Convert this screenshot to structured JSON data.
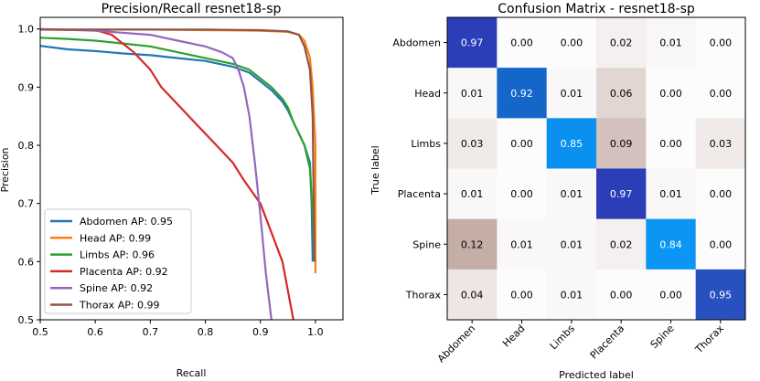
{
  "chart_data": [
    {
      "type": "line",
      "title": "Precision/Recall resnet18-sp",
      "xlabel": "Recall",
      "ylabel": "Precision",
      "xlim": [
        0.5,
        1.05
      ],
      "ylim": [
        0.5,
        1.02
      ],
      "xticks": [
        "0.5",
        "0.6",
        "0.7",
        "0.8",
        "0.9",
        "1.0"
      ],
      "yticks": [
        "0.5",
        "0.6",
        "0.7",
        "0.8",
        "0.9",
        "1.0"
      ],
      "grid": false,
      "legend_position": "lower-left",
      "series": [
        {
          "name": "Abdomen AP: 0.95",
          "color": "#1f77b4",
          "x": [
            0.5,
            0.55,
            0.6,
            0.65,
            0.7,
            0.75,
            0.8,
            0.85,
            0.88,
            0.9,
            0.92,
            0.94,
            0.95,
            0.96,
            0.97,
            0.98,
            0.99,
            0.993,
            0.995
          ],
          "y": [
            0.971,
            0.965,
            0.962,
            0.958,
            0.955,
            0.95,
            0.945,
            0.935,
            0.925,
            0.91,
            0.895,
            0.875,
            0.86,
            0.84,
            0.82,
            0.8,
            0.77,
            0.7,
            0.6
          ]
        },
        {
          "name": "Head AP: 0.99",
          "color": "#ff7f0e",
          "x": [
            0.5,
            0.6,
            0.7,
            0.8,
            0.9,
            0.95,
            0.97,
            0.98,
            0.99,
            0.995,
            1.0,
            1.0
          ],
          "y": [
            0.999,
            0.999,
            0.999,
            0.998,
            0.997,
            0.995,
            0.99,
            0.98,
            0.95,
            0.9,
            0.8,
            0.58
          ]
        },
        {
          "name": "Limbs AP: 0.96",
          "color": "#2ca02c",
          "x": [
            0.5,
            0.55,
            0.6,
            0.65,
            0.7,
            0.75,
            0.8,
            0.85,
            0.88,
            0.9,
            0.92,
            0.94,
            0.95,
            0.96,
            0.97,
            0.98,
            0.99,
            0.995,
            0.998
          ],
          "y": [
            0.985,
            0.983,
            0.98,
            0.975,
            0.97,
            0.96,
            0.95,
            0.94,
            0.93,
            0.915,
            0.9,
            0.88,
            0.865,
            0.84,
            0.82,
            0.8,
            0.76,
            0.68,
            0.6
          ]
        },
        {
          "name": "Placenta AP: 0.92",
          "color": "#d62728",
          "x": [
            0.5,
            0.6,
            0.63,
            0.67,
            0.7,
            0.72,
            0.75,
            0.78,
            0.8,
            0.82,
            0.85,
            0.87,
            0.9,
            0.92,
            0.94,
            0.95,
            0.96
          ],
          "y": [
            0.999,
            0.998,
            0.99,
            0.96,
            0.93,
            0.9,
            0.87,
            0.84,
            0.82,
            0.8,
            0.77,
            0.74,
            0.7,
            0.65,
            0.6,
            0.55,
            0.5
          ]
        },
        {
          "name": "Spine AP: 0.92",
          "color": "#9467bd",
          "x": [
            0.5,
            0.6,
            0.7,
            0.75,
            0.8,
            0.83,
            0.85,
            0.86,
            0.87,
            0.88,
            0.89,
            0.9,
            0.91,
            0.92
          ],
          "y": [
            1.0,
            0.997,
            0.99,
            0.98,
            0.97,
            0.96,
            0.95,
            0.93,
            0.9,
            0.85,
            0.77,
            0.68,
            0.58,
            0.5
          ]
        },
        {
          "name": "Thorax AP: 0.99",
          "color": "#8c564b",
          "x": [
            0.5,
            0.6,
            0.7,
            0.8,
            0.9,
            0.95,
            0.97,
            0.98,
            0.99,
            0.995,
            0.998
          ],
          "y": [
            0.999,
            0.999,
            0.999,
            0.999,
            0.998,
            0.996,
            0.99,
            0.97,
            0.93,
            0.85,
            0.6
          ]
        }
      ]
    },
    {
      "type": "heatmap",
      "title": "Confusion Matrix - resnet18-sp",
      "xlabel": "Predicted label",
      "ylabel": "True label",
      "x_categories": [
        "Abdomen",
        "Head",
        "Limbs",
        "Placenta",
        "Spine",
        "Thorax"
      ],
      "y_categories": [
        "Abdomen",
        "Head",
        "Limbs",
        "Placenta",
        "Spine",
        "Thorax"
      ],
      "values": [
        [
          "0.97",
          "0.00",
          "0.00",
          "0.02",
          "0.01",
          "0.00"
        ],
        [
          "0.01",
          "0.92",
          "0.01",
          "0.06",
          "0.00",
          "0.00"
        ],
        [
          "0.03",
          "0.00",
          "0.85",
          "0.09",
          "0.00",
          "0.03"
        ],
        [
          "0.01",
          "0.00",
          "0.01",
          "0.97",
          "0.01",
          "0.00"
        ],
        [
          "0.12",
          "0.01",
          "0.01",
          "0.02",
          "0.84",
          "0.00"
        ],
        [
          "0.04",
          "0.00",
          "0.01",
          "0.00",
          "0.00",
          "0.95"
        ]
      ],
      "cell_colors": [
        [
          "#2b3eb8",
          "#fdfcfc",
          "#fdfcfc",
          "#f4f0ef",
          "#f9f7f7",
          "#fdfcfc"
        ],
        [
          "#f9f7f7",
          "#1466c8",
          "#f9f7f7",
          "#e2d6d3",
          "#fdfcfc",
          "#fdfcfc"
        ],
        [
          "#f0eae8",
          "#fdfcfc",
          "#0a90ef",
          "#d2c1bc",
          "#fdfcfc",
          "#f0eae8"
        ],
        [
          "#f9f7f7",
          "#fdfcfc",
          "#f9f7f7",
          "#2b3eb8",
          "#f9f7f7",
          "#fdfcfc"
        ],
        [
          "#c4aea6",
          "#f9f7f7",
          "#f9f7f7",
          "#f4f0ef",
          "#0a96f2",
          "#fdfcfc"
        ],
        [
          "#ede6e3",
          "#fdfcfc",
          "#f9f7f7",
          "#fdfcfc",
          "#fdfcfc",
          "#2950bf"
        ]
      ]
    }
  ]
}
